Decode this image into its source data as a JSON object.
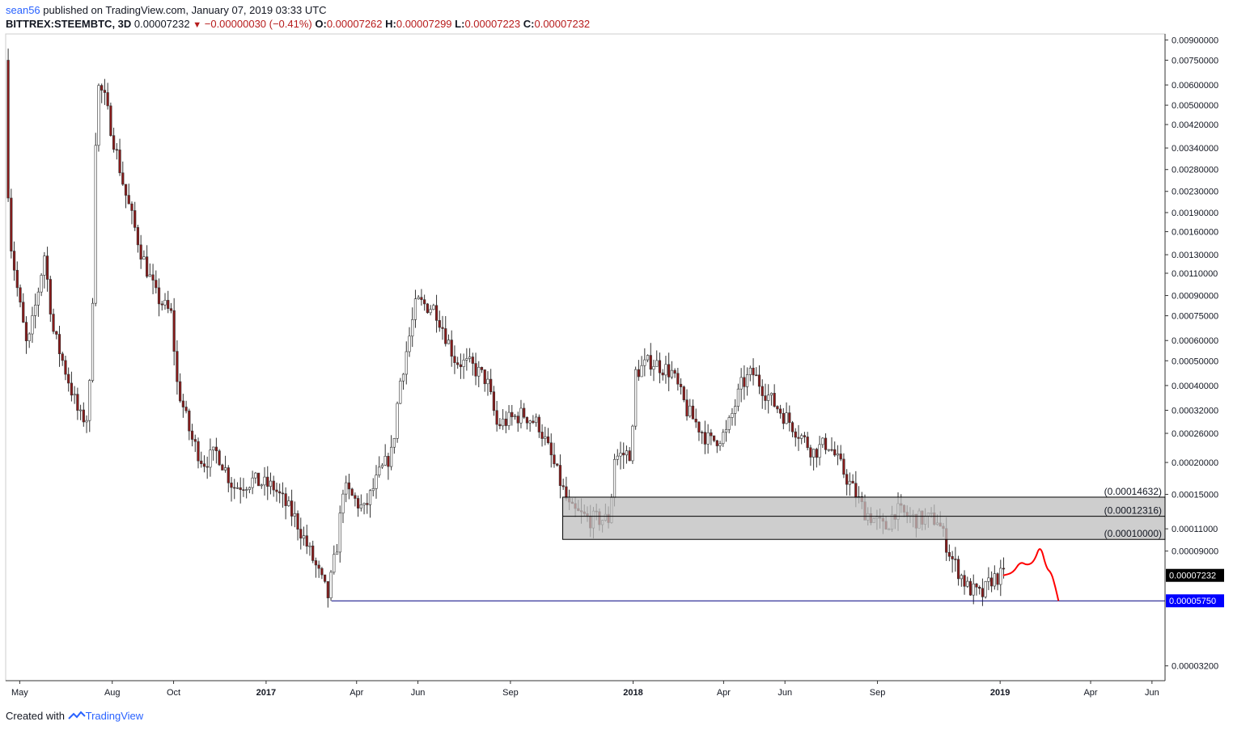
{
  "header": {
    "author": "sean56",
    "published_text": "published on TradingView.com, January 07, 2019 03:33 UTC",
    "symbol": "BITTREX:STEEMBTC, 3D",
    "last": "0.00007232",
    "change": "−0.00000030 (−0.41%)",
    "open_label": "O:",
    "open": "0.00007262",
    "high_label": "H:",
    "high": "0.00007299",
    "low_label": "L:",
    "low": "0.00007223",
    "close_label": "C:",
    "close": "0.00007232"
  },
  "footer": {
    "created_with": "Created with",
    "brand": "TradingView"
  },
  "colors": {
    "up": "#ffffff",
    "down": "#8b1a1a",
    "wick": "#333333",
    "zone": "#bdbdbd",
    "support": "#000080",
    "projection": "#ff0000",
    "price_badge": "#000000",
    "support_badge": "#0000ff"
  },
  "chart_data": {
    "type": "candlestick",
    "log_scale": true,
    "y_ticks": [
      "0.00900000",
      "0.00750000",
      "0.00600000",
      "0.00500000",
      "0.00420000",
      "0.00340000",
      "0.00280000",
      "0.00230000",
      "0.00190000",
      "0.00160000",
      "0.00130000",
      "0.00110000",
      "0.00090000",
      "0.00075000",
      "0.00060000",
      "0.00050000",
      "0.00040000",
      "0.00032000",
      "0.00026000",
      "0.00020000",
      "0.00015000",
      "0.00011000",
      "0.00009000",
      "0.00003200"
    ],
    "x_ticks": [
      "May",
      "Aug",
      "Oct",
      "2017",
      "Apr",
      "Jun",
      "Sep",
      "2018",
      "Apr",
      "Jun",
      "Sep",
      "2019",
      "Apr",
      "Jun"
    ],
    "x_tick_dates": [
      "2016-05-01",
      "2016-08-01",
      "2016-10-01",
      "2017-01-01",
      "2017-04-01",
      "2017-06-01",
      "2017-09-01",
      "2018-01-01",
      "2018-04-01",
      "2018-06-01",
      "2018-09-01",
      "2019-01-01",
      "2019-04-01",
      "2019-06-01"
    ],
    "date_range": [
      "2016-04-17",
      "2019-06-14"
    ],
    "price_path": [
      [
        "2016-04-18",
        0.0075
      ],
      [
        "2016-04-22",
        0.0016
      ],
      [
        "2016-05-01",
        0.0009
      ],
      [
        "2016-05-10",
        0.00055
      ],
      [
        "2016-05-20",
        0.0009
      ],
      [
        "2016-05-27",
        0.0013
      ],
      [
        "2016-06-05",
        0.00065
      ],
      [
        "2016-06-20",
        0.00042
      ],
      [
        "2016-07-01",
        0.0003
      ],
      [
        "2016-07-10",
        0.0003
      ],
      [
        "2016-07-14",
        0.0009
      ],
      [
        "2016-07-18",
        0.006
      ],
      [
        "2016-07-25",
        0.0055
      ],
      [
        "2016-08-05",
        0.0035
      ],
      [
        "2016-08-15",
        0.0023
      ],
      [
        "2016-09-01",
        0.0013
      ],
      [
        "2016-09-15",
        0.0009
      ],
      [
        "2016-10-01",
        0.00075
      ],
      [
        "2016-10-05",
        0.00042
      ],
      [
        "2016-10-20",
        0.00025
      ],
      [
        "2016-11-01",
        0.0002
      ],
      [
        "2016-11-15",
        0.00022
      ],
      [
        "2016-12-01",
        0.00016
      ],
      [
        "2016-12-20",
        0.00017
      ],
      [
        "2017-01-10",
        0.00016
      ],
      [
        "2017-02-01",
        0.00012
      ],
      [
        "2017-02-20",
        8e-05
      ],
      [
        "2017-03-05",
        6e-05
      ],
      [
        "2017-03-15",
        0.0001
      ],
      [
        "2017-03-20",
        0.00016
      ],
      [
        "2017-04-10",
        0.00013
      ],
      [
        "2017-04-25",
        0.00018
      ],
      [
        "2017-05-08",
        0.00022
      ],
      [
        "2017-05-15",
        0.0004
      ],
      [
        "2017-06-01",
        0.00085
      ],
      [
        "2017-06-20",
        0.0008
      ],
      [
        "2017-07-10",
        0.0005
      ],
      [
        "2017-07-25",
        0.00048
      ],
      [
        "2017-08-10",
        0.00042
      ],
      [
        "2017-08-20",
        0.00028
      ],
      [
        "2017-09-15",
        0.00031
      ],
      [
        "2017-10-01",
        0.00028
      ],
      [
        "2017-10-15",
        0.0002
      ],
      [
        "2017-11-01",
        0.00013
      ],
      [
        "2017-11-20",
        0.00012
      ],
      [
        "2017-12-10",
        0.00012
      ],
      [
        "2017-12-15",
        0.00021
      ],
      [
        "2018-01-01",
        0.00022
      ],
      [
        "2018-01-05",
        0.00045
      ],
      [
        "2018-01-20",
        0.0005
      ],
      [
        "2018-02-10",
        0.00045
      ],
      [
        "2018-02-25",
        0.00032
      ],
      [
        "2018-03-20",
        0.00024
      ],
      [
        "2018-04-05",
        0.00026
      ],
      [
        "2018-04-20",
        0.0004
      ],
      [
        "2018-05-01",
        0.00045
      ],
      [
        "2018-05-20",
        0.00035
      ],
      [
        "2018-06-10",
        0.00028
      ],
      [
        "2018-07-01",
        0.00022
      ],
      [
        "2018-07-15",
        0.00024
      ],
      [
        "2018-08-01",
        0.00018
      ],
      [
        "2018-08-20",
        0.00013
      ],
      [
        "2018-09-10",
        0.00011
      ],
      [
        "2018-09-20",
        0.00013
      ],
      [
        "2018-10-10",
        0.00012
      ],
      [
        "2018-11-01",
        0.00012
      ],
      [
        "2018-11-15",
        8.5e-05
      ],
      [
        "2018-12-01",
        6.5e-05
      ],
      [
        "2018-12-15",
        6e-05
      ],
      [
        "2018-12-25",
        7e-05
      ],
      [
        "2019-01-04",
        7.23e-05
      ]
    ],
    "zone": {
      "start": "2017-10-23",
      "top": "0.00014632",
      "mid": "0.00012316",
      "bottom": "0.00010000"
    },
    "zone_labels": [
      "(0.00014632)",
      "(0.00012316)",
      "(0.00010000)"
    ],
    "support": {
      "start": "2017-03-07",
      "end": "2019-02-28",
      "value": 5.75e-05,
      "label": "0.00005750"
    },
    "last_price_label": "0.00007232",
    "projection": [
      [
        "2019-01-04",
        7.23e-05
      ],
      [
        "2019-01-14",
        7.4e-05
      ],
      [
        "2019-01-21",
        8.2e-05
      ],
      [
        "2019-01-28",
        7.9e-05
      ],
      [
        "2019-02-04",
        8.2e-05
      ],
      [
        "2019-02-10",
        9.6e-05
      ],
      [
        "2019-02-16",
        7.7e-05
      ],
      [
        "2019-02-21",
        7.4e-05
      ],
      [
        "2019-02-25",
        6.5e-05
      ],
      [
        "2019-02-28",
        5.75e-05
      ]
    ]
  }
}
